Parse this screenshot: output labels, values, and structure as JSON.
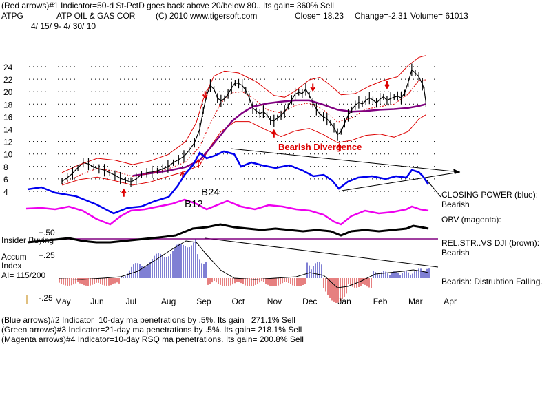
{
  "header": {
    "line1": "(Red arrows)#1 Indicator=50-d St-PctD goes back above 20/below 80.. Its gain= 360% Sell",
    "ticker": "ATPG",
    "company": "ATP OIL & GAS COR",
    "copyright": "(C) 2010 www.tigersoft.com",
    "close": "Close=  18.23",
    "change": "Change=-2.31",
    "volume": "Volume= 61013",
    "date_range": "4/ 15/ 9-  4/ 30/ 10"
  },
  "footer": {
    "line1": "(Blue arrows)#2 Indicator=10-day ma penetrations by .5%. Its gain= 271.1% Sell",
    "line2": "(Green arrows)#3 Indicator=21-day ma penetrations by .5%. Its gain= 218.1% Sell",
    "line3": "(Magenta arrows)#4 Indicator=10-day RSQ ma penetrations. Its gain= 200.8% Sell"
  },
  "annotations": {
    "bearish_divergence": "Bearish Divergence",
    "b24": "B24",
    "b12": "B12",
    "closing_power_label": "CLOSING POWER (blue):",
    "closing_power_value": "Bearish",
    "obv_label": "OBV (magenta):",
    "relstr_label": "REL.STR..VS DJI (brown):",
    "relstr_value": "Bearish",
    "accum_value": "Bearish: Distrubtion Falling.",
    "insider_buying": "Insider Buying",
    "plus50": "+.50",
    "plus25": "+.25",
    "minus25": "-.25",
    "accum_label": "Accum",
    "index_label": "Index",
    "ai_label": "AI= 115/200"
  },
  "colors": {
    "price": "#000000",
    "bands": "#dd0000",
    "ma": "#800080",
    "closing_power": "#0000ee",
    "obv": "#ee00ee",
    "rel_str": "#000000",
    "accum_pos": "#0000aa",
    "accum_neg": "#cc0000",
    "arrows": "#dd0000",
    "divergence_text": "#dd0000"
  },
  "chart_data": {
    "type": "line",
    "title": "ATPG  ATP OIL & GAS COR",
    "x": [
      "May",
      "Jun",
      "Jul",
      "Aug",
      "Sep",
      "Oct",
      "Nov",
      "Dec",
      "Jan",
      "Feb",
      "Mar",
      "Apr"
    ],
    "ylim": [
      3.5,
      25
    ],
    "yticks": [
      4,
      6,
      8,
      10,
      12,
      14,
      16,
      18,
      20,
      22,
      24
    ],
    "series": [
      {
        "name": "Close",
        "points": [
          [
            0,
            5.6
          ],
          [
            0.15,
            6.2
          ],
          [
            0.3,
            6.9
          ],
          [
            0.45,
            7.8
          ],
          [
            0.6,
            8.6
          ],
          [
            0.75,
            8.4
          ],
          [
            0.9,
            7.9
          ],
          [
            1.05,
            7.6
          ],
          [
            1.2,
            7.4
          ],
          [
            1.35,
            7.0
          ],
          [
            1.5,
            6.6
          ],
          [
            1.65,
            6.1
          ],
          [
            1.8,
            5.8
          ],
          [
            1.95,
            5.5
          ],
          [
            2.1,
            6.0
          ],
          [
            2.25,
            6.7
          ],
          [
            2.4,
            7.0
          ],
          [
            2.55,
            7.1
          ],
          [
            2.7,
            7.3
          ],
          [
            2.85,
            7.6
          ],
          [
            3.0,
            8.0
          ],
          [
            3.15,
            8.6
          ],
          [
            3.3,
            9.1
          ],
          [
            3.45,
            9.6
          ],
          [
            3.6,
            10.6
          ],
          [
            3.75,
            11.8
          ],
          [
            3.9,
            14.0
          ],
          [
            4.0,
            17.0
          ],
          [
            4.1,
            19.5
          ],
          [
            4.2,
            21.0
          ],
          [
            4.3,
            20.4
          ],
          [
            4.4,
            19.0
          ],
          [
            4.5,
            18.5
          ],
          [
            4.6,
            18.9
          ],
          [
            4.7,
            19.6
          ],
          [
            4.8,
            20.6
          ],
          [
            4.9,
            21.4
          ],
          [
            5.0,
            21.3
          ],
          [
            5.1,
            21.0
          ],
          [
            5.2,
            20.2
          ],
          [
            5.3,
            19.0
          ],
          [
            5.4,
            17.4
          ],
          [
            5.5,
            16.9
          ],
          [
            5.6,
            16.5
          ],
          [
            5.7,
            16.8
          ],
          [
            5.8,
            16.3
          ],
          [
            5.9,
            15.4
          ],
          [
            6.0,
            15.3
          ],
          [
            6.1,
            15.8
          ],
          [
            6.2,
            16.2
          ],
          [
            6.3,
            16.8
          ],
          [
            6.4,
            17.6
          ],
          [
            6.5,
            18.7
          ],
          [
            6.6,
            19.6
          ],
          [
            6.7,
            19.9
          ],
          [
            6.8,
            19.7
          ],
          [
            6.9,
            20.4
          ],
          [
            7.0,
            19.4
          ],
          [
            7.1,
            18.2
          ],
          [
            7.2,
            17.2
          ],
          [
            7.3,
            16.4
          ],
          [
            7.4,
            16.0
          ],
          [
            7.5,
            15.6
          ],
          [
            7.6,
            15.0
          ],
          [
            7.7,
            14.2
          ],
          [
            7.8,
            13.1
          ],
          [
            7.9,
            13.6
          ],
          [
            8.0,
            15.0
          ],
          [
            8.1,
            16.2
          ],
          [
            8.2,
            17.1
          ],
          [
            8.3,
            17.8
          ],
          [
            8.4,
            18.3
          ],
          [
            8.5,
            18.0
          ],
          [
            8.6,
            18.6
          ],
          [
            8.7,
            19.0
          ],
          [
            8.8,
            18.7
          ],
          [
            8.9,
            18.2
          ],
          [
            9.0,
            18.8
          ],
          [
            9.1,
            19.2
          ],
          [
            9.2,
            18.6
          ],
          [
            9.3,
            18.9
          ],
          [
            9.4,
            19.1
          ],
          [
            9.5,
            19.3
          ],
          [
            9.6,
            19.0
          ],
          [
            9.7,
            19.8
          ],
          [
            9.8,
            21.5
          ],
          [
            9.9,
            23.5
          ],
          [
            10.0,
            23.0
          ],
          [
            10.1,
            22.4
          ],
          [
            10.2,
            21.2
          ],
          [
            10.25,
            20.3
          ],
          [
            10.3,
            18.23
          ]
        ]
      },
      {
        "name": "Upper band",
        "points": [
          [
            0,
            7.0
          ],
          [
            0.5,
            8.3
          ],
          [
            1.0,
            9.3
          ],
          [
            1.5,
            9.0
          ],
          [
            2.0,
            8.3
          ],
          [
            2.5,
            8.9
          ],
          [
            3.0,
            9.9
          ],
          [
            3.5,
            12.0
          ],
          [
            3.8,
            15.0
          ],
          [
            4.0,
            18.8
          ],
          [
            4.3,
            22.5
          ],
          [
            4.6,
            23.3
          ],
          [
            5.0,
            23.0
          ],
          [
            5.5,
            21.6
          ],
          [
            6.0,
            19.4
          ],
          [
            6.3,
            19.1
          ],
          [
            6.6,
            20.1
          ],
          [
            7.0,
            21.9
          ],
          [
            7.3,
            22.3
          ],
          [
            7.6,
            21.0
          ],
          [
            7.9,
            19.5
          ],
          [
            8.3,
            19.7
          ],
          [
            8.7,
            20.9
          ],
          [
            9.1,
            21.8
          ],
          [
            9.5,
            22.4
          ],
          [
            9.8,
            24.2
          ],
          [
            10.1,
            25.5
          ],
          [
            10.3,
            25.8
          ]
        ]
      },
      {
        "name": "Lower band",
        "points": [
          [
            0,
            5.0
          ],
          [
            0.5,
            5.9
          ],
          [
            1.0,
            6.3
          ],
          [
            1.5,
            5.7
          ],
          [
            2.0,
            5.0
          ],
          [
            2.5,
            5.5
          ],
          [
            3.0,
            6.4
          ],
          [
            3.5,
            7.2
          ],
          [
            3.9,
            8.2
          ],
          [
            4.2,
            11.2
          ],
          [
            4.5,
            13.6
          ],
          [
            4.9,
            15.2
          ],
          [
            5.3,
            15.2
          ],
          [
            5.8,
            13.8
          ],
          [
            6.2,
            12.8
          ],
          [
            6.6,
            13.7
          ],
          [
            7.0,
            14.1
          ],
          [
            7.4,
            13.1
          ],
          [
            7.8,
            11.8
          ],
          [
            8.2,
            12.2
          ],
          [
            8.6,
            13.0
          ],
          [
            9.0,
            13.2
          ],
          [
            9.4,
            12.7
          ],
          [
            9.8,
            13.6
          ],
          [
            10.1,
            15.6
          ],
          [
            10.3,
            16.3
          ]
        ]
      },
      {
        "name": "Moving average",
        "points": [
          [
            2.0,
            6.5
          ],
          [
            2.5,
            6.9
          ],
          [
            3.0,
            7.3
          ],
          [
            3.5,
            7.9
          ],
          [
            3.9,
            9.0
          ],
          [
            4.2,
            11.0
          ],
          [
            4.5,
            13.1
          ],
          [
            4.8,
            15.2
          ],
          [
            5.1,
            16.6
          ],
          [
            5.4,
            17.6
          ],
          [
            5.8,
            18.1
          ],
          [
            6.2,
            18.4
          ],
          [
            6.6,
            18.6
          ],
          [
            7.0,
            18.6
          ],
          [
            7.4,
            17.9
          ],
          [
            7.8,
            17.1
          ],
          [
            8.2,
            16.8
          ],
          [
            8.6,
            16.9
          ],
          [
            9.0,
            17.1
          ],
          [
            9.4,
            17.2
          ],
          [
            9.8,
            17.4
          ],
          [
            10.1,
            17.7
          ],
          [
            10.3,
            18.0
          ]
        ]
      },
      {
        "name": "Dotted moving average",
        "points": [
          [
            0,
            5.2
          ],
          [
            0.5,
            6.6
          ],
          [
            1.0,
            7.7
          ],
          [
            1.5,
            7.2
          ],
          [
            2.0,
            6.4
          ],
          [
            2.5,
            6.9
          ],
          [
            3.0,
            7.6
          ],
          [
            3.5,
            8.7
          ],
          [
            3.9,
            11.2
          ],
          [
            4.2,
            15.0
          ],
          [
            4.5,
            18.2
          ],
          [
            4.8,
            19.8
          ],
          [
            5.1,
            20.0
          ],
          [
            5.4,
            19.0
          ],
          [
            5.8,
            17.1
          ],
          [
            6.2,
            16.6
          ],
          [
            6.6,
            17.8
          ],
          [
            7.0,
            18.2
          ],
          [
            7.4,
            17.1
          ],
          [
            7.8,
            15.1
          ],
          [
            8.2,
            15.8
          ],
          [
            8.6,
            17.2
          ],
          [
            9.0,
            17.6
          ],
          [
            9.4,
            18.0
          ],
          [
            9.8,
            19.6
          ],
          [
            10.1,
            21.8
          ],
          [
            10.3,
            21.9
          ]
        ]
      }
    ],
    "sell_arrows_x": [
      4.05,
      7.1,
      9.2
    ],
    "buy_arrows_x": [
      1.75,
      6.0,
      7.85
    ]
  }
}
